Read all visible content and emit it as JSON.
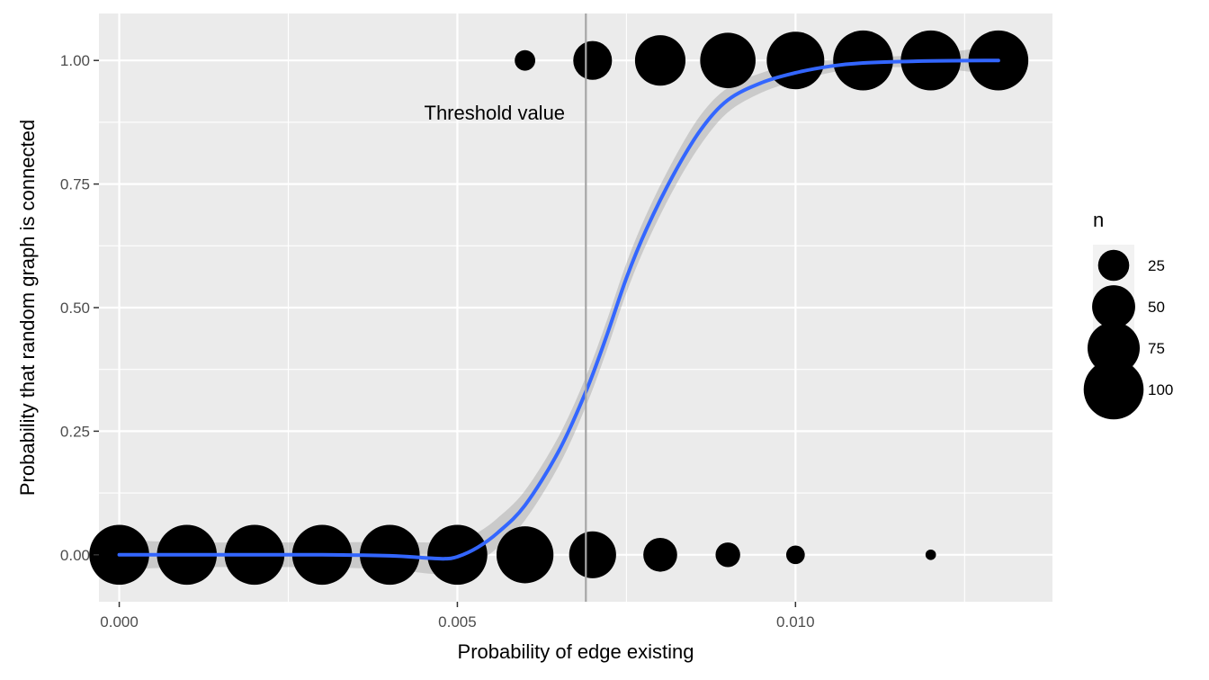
{
  "chart_data": {
    "type": "scatter",
    "xlabel": "Probability of edge existing",
    "ylabel": "Probability that random graph is connected",
    "xlim": [
      -0.0003,
      0.0138
    ],
    "ylim": [
      -0.095,
      1.095
    ],
    "x_ticks": [
      0.0,
      0.005,
      0.01
    ],
    "x_tick_labels": [
      "0.000",
      "0.005",
      "0.010"
    ],
    "y_ticks": [
      0.0,
      0.25,
      0.5,
      0.75,
      1.0
    ],
    "y_tick_labels": [
      "0.00",
      "0.25",
      "0.50",
      "0.75",
      "1.00"
    ],
    "grid": true,
    "points": [
      {
        "x": 0.0,
        "y": 0,
        "n": 100
      },
      {
        "x": 0.001,
        "y": 0,
        "n": 100
      },
      {
        "x": 0.002,
        "y": 0,
        "n": 100
      },
      {
        "x": 0.003,
        "y": 0,
        "n": 100
      },
      {
        "x": 0.004,
        "y": 0,
        "n": 100
      },
      {
        "x": 0.005,
        "y": 0,
        "n": 100
      },
      {
        "x": 0.006,
        "y": 0,
        "n": 90
      },
      {
        "x": 0.007,
        "y": 0,
        "n": 60
      },
      {
        "x": 0.008,
        "y": 0,
        "n": 30
      },
      {
        "x": 0.009,
        "y": 0,
        "n": 15
      },
      {
        "x": 0.01,
        "y": 0,
        "n": 8
      },
      {
        "x": 0.012,
        "y": 0,
        "n": 2
      },
      {
        "x": 0.006,
        "y": 1,
        "n": 10
      },
      {
        "x": 0.007,
        "y": 1,
        "n": 40
      },
      {
        "x": 0.008,
        "y": 1,
        "n": 70
      },
      {
        "x": 0.009,
        "y": 1,
        "n": 85
      },
      {
        "x": 0.01,
        "y": 1,
        "n": 92
      },
      {
        "x": 0.011,
        "y": 1,
        "n": 100
      },
      {
        "x": 0.012,
        "y": 1,
        "n": 100
      },
      {
        "x": 0.013,
        "y": 1,
        "n": 100
      }
    ],
    "smooth": {
      "x": [
        0.0,
        0.001,
        0.002,
        0.003,
        0.004,
        0.0045,
        0.0048,
        0.005,
        0.0053,
        0.0056,
        0.006,
        0.0065,
        0.0069,
        0.0072,
        0.0075,
        0.0078,
        0.0082,
        0.0086,
        0.009,
        0.0095,
        0.01,
        0.0105,
        0.011,
        0.012,
        0.013
      ],
      "y": [
        0.0,
        0.0,
        0.0,
        0.0,
        -0.002,
        -0.006,
        -0.008,
        -0.004,
        0.015,
        0.045,
        0.1,
        0.21,
        0.33,
        0.44,
        0.56,
        0.66,
        0.77,
        0.86,
        0.92,
        0.955,
        0.975,
        0.988,
        0.995,
        0.999,
        1.0
      ],
      "lower": [
        -0.03,
        -0.025,
        -0.025,
        -0.025,
        -0.03,
        -0.037,
        -0.04,
        -0.035,
        -0.015,
        0.015,
        0.07,
        0.18,
        0.3,
        0.41,
        0.53,
        0.63,
        0.74,
        0.83,
        0.895,
        0.935,
        0.958,
        0.975,
        0.985,
        0.985,
        0.97
      ],
      "upper": [
        0.03,
        0.025,
        0.025,
        0.025,
        0.026,
        0.025,
        0.024,
        0.027,
        0.045,
        0.075,
        0.13,
        0.24,
        0.36,
        0.47,
        0.59,
        0.69,
        0.8,
        0.89,
        0.945,
        0.975,
        0.992,
        1.001,
        1.005,
        1.013,
        1.03
      ]
    },
    "vline": {
      "x": 0.0069
    },
    "annotation": {
      "text": "Threshold value",
      "x": 0.00555,
      "y": 0.895
    },
    "legend": {
      "title": "n",
      "placement": "right",
      "entries": [
        {
          "label": "25",
          "n": 25
        },
        {
          "label": "50",
          "n": 50
        },
        {
          "label": "75",
          "n": 75
        },
        {
          "label": "100",
          "n": 100
        }
      ]
    },
    "colors": {
      "panel": "#ebebeb",
      "grid": "#ffffff",
      "point": "#000000",
      "line": "#3366ff",
      "ribbon": "#999999",
      "vline": "#a6a6a6",
      "tick": "#333333"
    }
  }
}
